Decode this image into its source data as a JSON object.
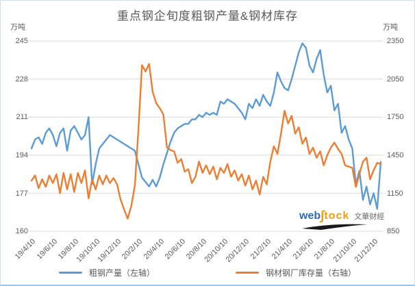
{
  "title": "重点钢企旬度粗钢产量&钢材库存",
  "left_axis": {
    "unit": "万吨",
    "ticks": [
      245,
      228,
      211,
      194,
      177,
      160
    ],
    "min": 160,
    "max": 245
  },
  "right_axis": {
    "unit": "万吨",
    "ticks": [
      2350,
      2050,
      1750,
      1450,
      1150,
      850
    ],
    "min": 850,
    "max": 2350
  },
  "legend": {
    "production_label": "粗钢产量（左轴）",
    "inventory_label": "钢材钢厂库存量（右轴）"
  },
  "watermark": {
    "web": "web",
    "integral": "∫",
    "tock": "tock",
    "cn": "文華财經"
  },
  "colors": {
    "production": "#5B9BD5",
    "inventory": "#ED7D31",
    "gridline": "#d9d9d9",
    "text": "#595959"
  },
  "chart_data": {
    "type": "line",
    "title": "重点钢企旬度粗钢产量&钢材库存",
    "x_tick_labels": [
      "19/4/10",
      "19/6/10",
      "19/8/10",
      "19/10/10",
      "19/12/10",
      "20/2/10",
      "20/4/10",
      "20/6/10",
      "20/8/10",
      "20/10/10",
      "20/12/10",
      "21/2/10",
      "21/4/10",
      "21/6/10",
      "21/8/10",
      "21/10/10",
      "21/12/10"
    ],
    "points_per_tick": 6,
    "n_points": 99,
    "grid": true,
    "legend_position": "bottom",
    "left_ylim": [
      160,
      245
    ],
    "right_ylim": [
      850,
      2350
    ],
    "series": [
      {
        "name": "粗钢产量（左轴）",
        "axis": "left",
        "color": "#5B9BD5",
        "values": [
          197,
          201,
          202,
          199,
          204,
          206,
          203,
          198,
          204,
          206,
          196,
          205,
          207,
          204,
          201,
          203,
          211,
          181,
          190,
          197,
          199,
          201,
          203,
          202,
          201,
          200,
          199,
          198,
          197,
          196,
          190,
          184,
          182,
          180,
          183,
          180,
          184,
          190,
          195,
          200,
          204,
          206,
          207,
          208,
          208,
          210,
          210,
          212,
          211,
          213,
          212,
          213,
          212,
          218,
          217,
          219,
          218,
          217,
          215,
          213,
          210,
          217,
          215,
          219,
          216,
          221,
          218,
          216,
          222,
          231,
          227,
          224,
          223,
          228,
          234,
          240,
          244,
          242,
          234,
          231,
          237,
          241,
          230,
          222,
          225,
          214,
          217,
          204,
          207,
          201,
          197,
          181,
          187,
          174,
          180,
          172,
          177,
          170,
          191
        ]
      },
      {
        "name": "钢材钢厂库存量（右轴）",
        "axis": "right",
        "color": "#ED7D31",
        "values": [
          1250,
          1290,
          1190,
          1260,
          1200,
          1290,
          1230,
          1300,
          1150,
          1310,
          1180,
          1300,
          1160,
          1310,
          1230,
          1330,
          1110,
          1260,
          1180,
          1290,
          1220,
          1290,
          1230,
          1270,
          1220,
          1100,
          1020,
          950,
          1050,
          1210,
          1650,
          2160,
          2110,
          2170,
          1950,
          1860,
          1820,
          1770,
          1510,
          1490,
          1480,
          1390,
          1420,
          1320,
          1340,
          1230,
          1280,
          1400,
          1310,
          1370,
          1300,
          1360,
          1260,
          1350,
          1310,
          1380,
          1280,
          1330,
          1250,
          1300,
          1210,
          1290,
          1180,
          1250,
          1140,
          1280,
          1220,
          1400,
          1520,
          1460,
          1620,
          1800,
          1700,
          1760,
          1620,
          1670,
          1540,
          1590,
          1460,
          1510,
          1430,
          1480,
          1370,
          1450,
          1510,
          1550,
          1500,
          1460,
          1370,
          1360,
          1350,
          1200,
          1300,
          1400,
          1430,
          1260,
          1330,
          1390,
          1380
        ]
      }
    ]
  }
}
